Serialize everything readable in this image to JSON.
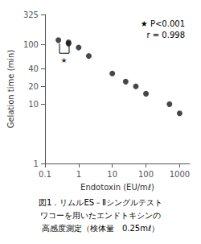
{
  "chart_data": {
    "type": "scatter",
    "x": [
      0.25,
      0.5,
      0.5,
      1.0,
      2.0,
      10.0,
      25.0,
      50.0,
      100.0,
      500.0,
      1000.0
    ],
    "values": [
      120,
      110,
      105,
      90,
      65,
      33,
      24,
      20,
      15,
      10,
      7
    ],
    "color": "#1a1a1a",
    "marker": "circle",
    "xlabel": "Endotoxin (EU/mℓ)",
    "ylabel": "Gelation time (min)",
    "log": true,
    "xlim": [
      0.1,
      2000
    ],
    "ylim": [
      1,
      325
    ],
    "xticks": [
      0.1,
      1,
      10,
      100,
      1000
    ],
    "yticks": [
      1,
      10,
      20,
      40,
      100,
      325
    ],
    "grid": false,
    "annotations": [
      "★ P<0.001",
      "r = 0.998"
    ],
    "bracket": {
      "x": [
        0.27,
        0.52
      ],
      "y_top": [
        105,
        100
      ],
      "y_bottom": 72,
      "label": "★",
      "label_x": 0.365,
      "label_y": 63
    },
    "caption": [
      "図1．リムルES－Ⅱシングルテスト",
      "ワコーを用いたエンドトキシンの",
      "高感度測定（検体量　0.25mℓ）"
    ]
  }
}
